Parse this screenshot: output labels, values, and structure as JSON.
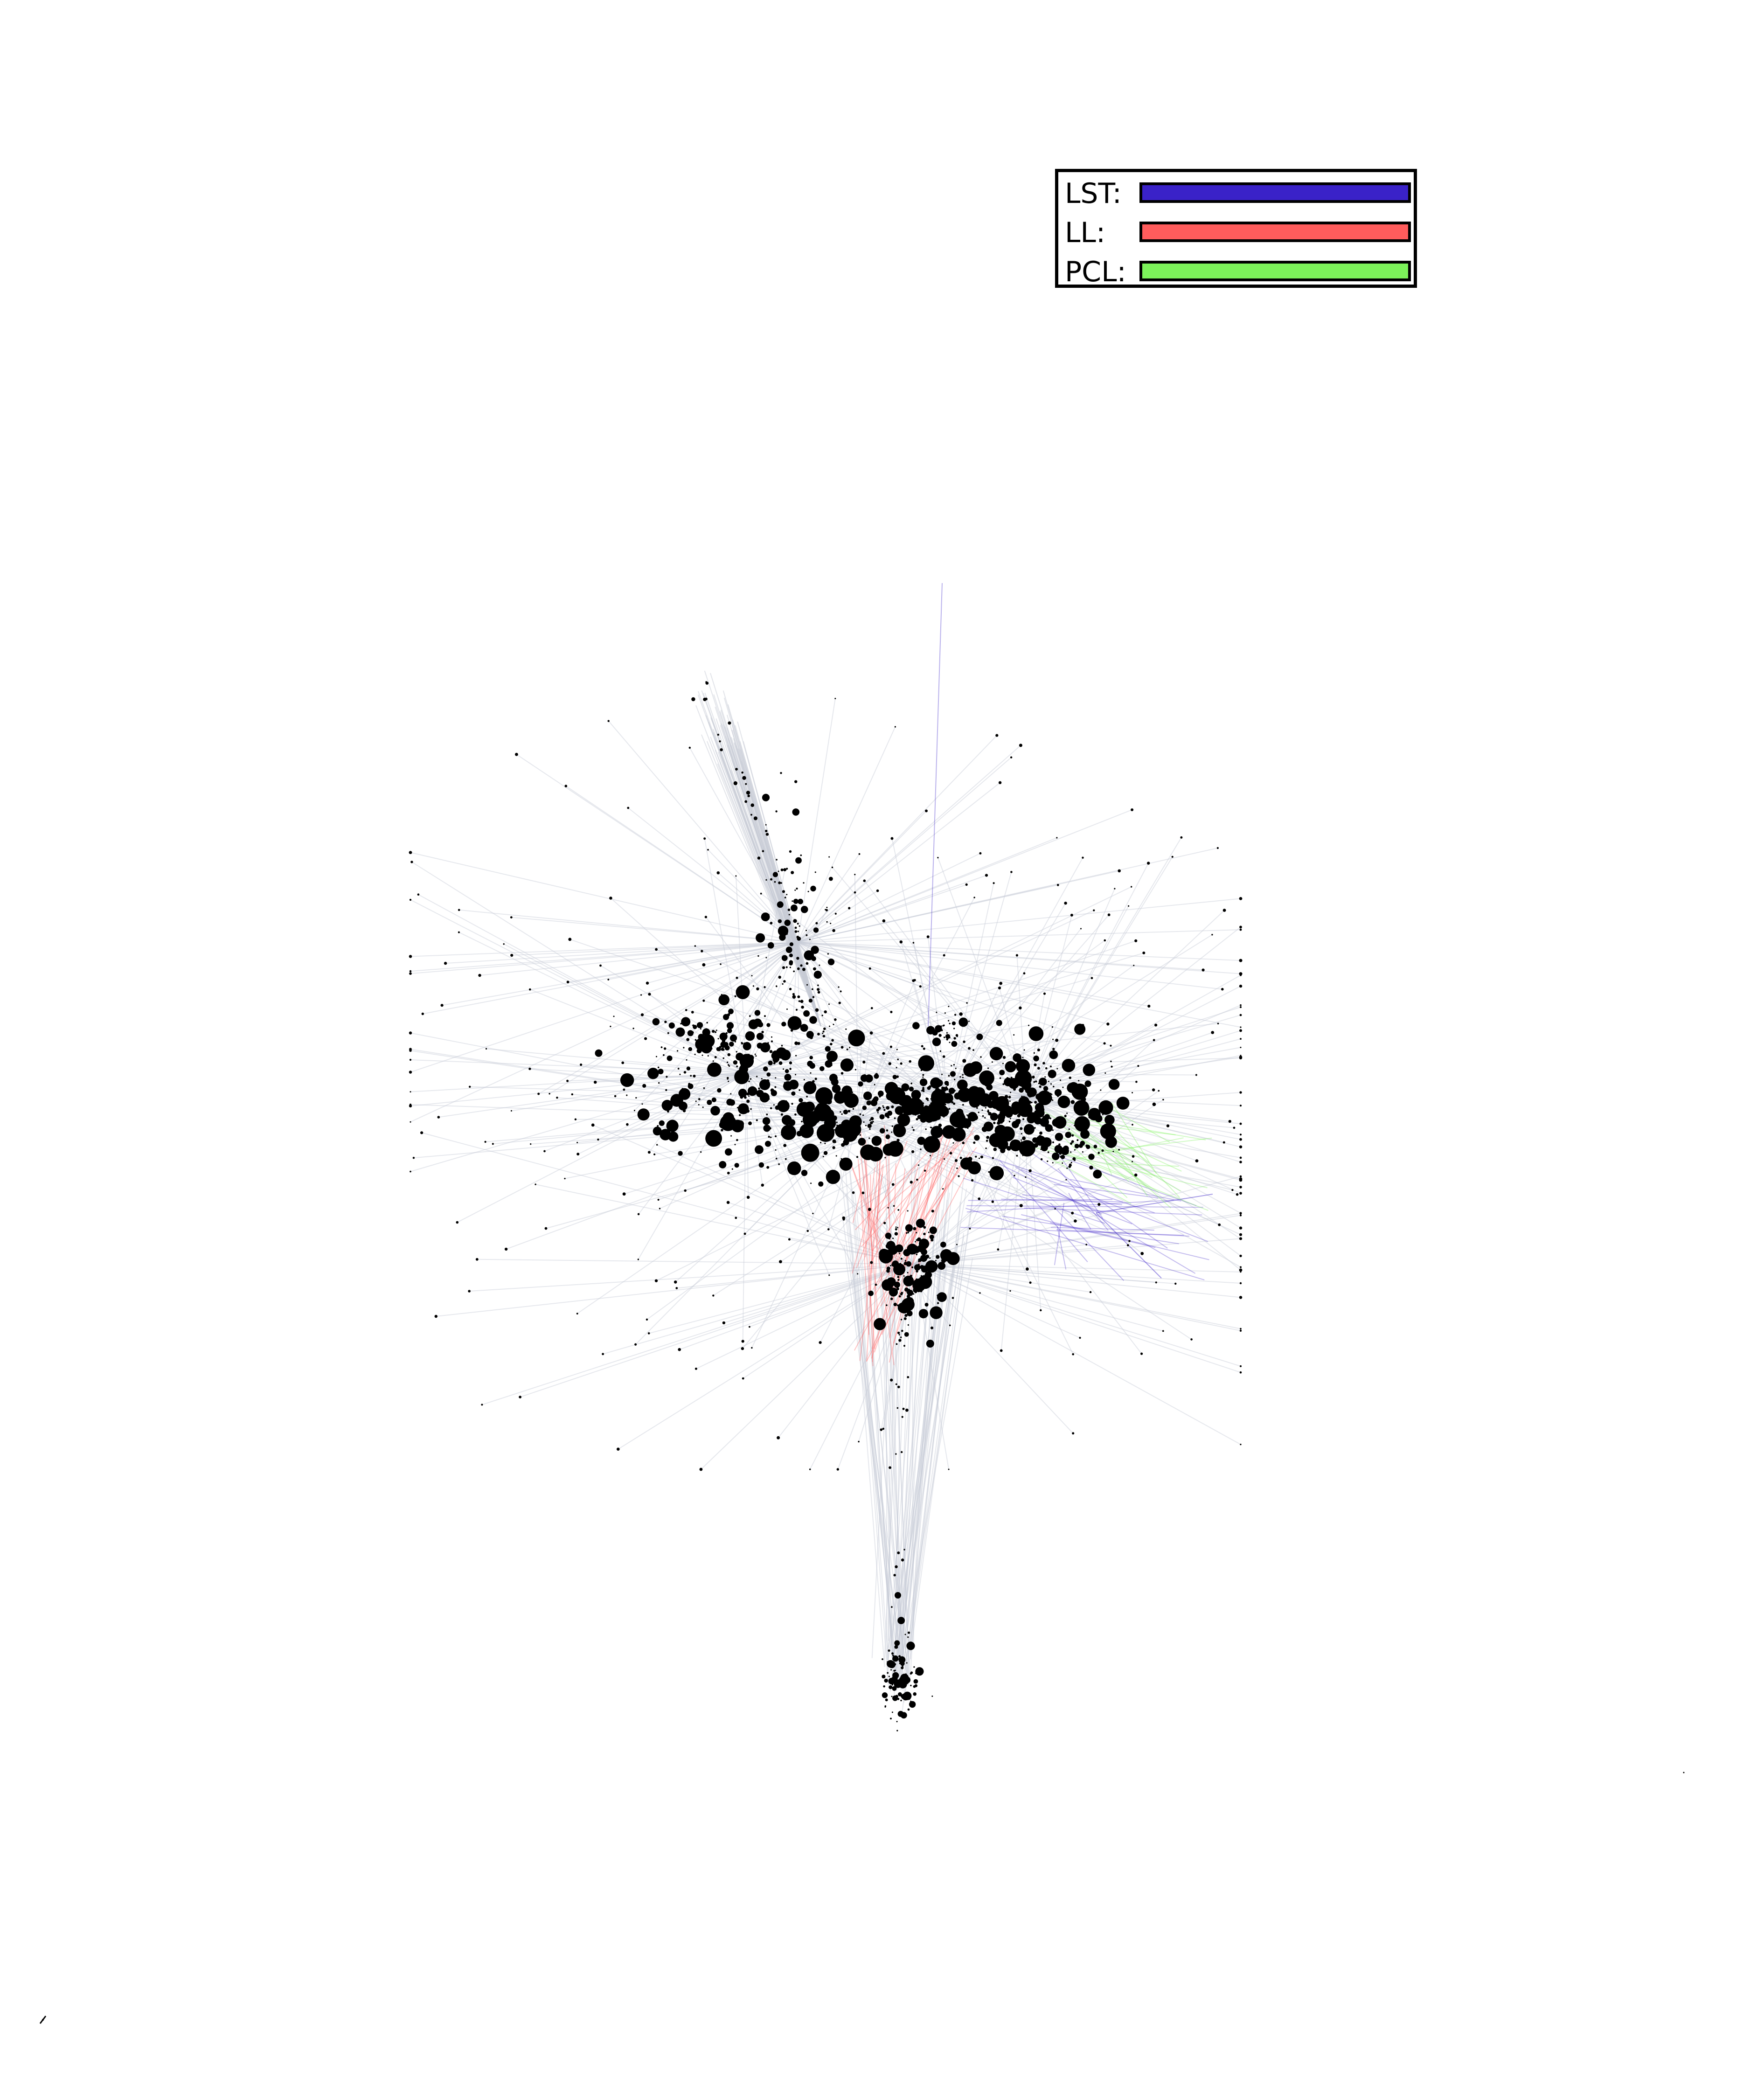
{
  "legend": {
    "items": [
      {
        "label": "LST:",
        "color": "#3a22c8"
      },
      {
        "label": "LL:",
        "color": "#ff5c5c"
      },
      {
        "label": "PCL:",
        "color": "#7cf25a"
      }
    ]
  },
  "graph": {
    "node_color": "#000000",
    "edge_color_default": "#c8ccd6",
    "edge_colors": {
      "LST": "#3a22c8",
      "LL": "#ff5c5c",
      "PCL": "#7cf25a"
    }
  }
}
